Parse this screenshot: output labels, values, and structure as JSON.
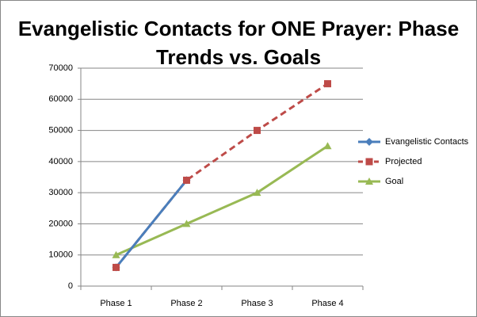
{
  "chart_data": {
    "type": "line",
    "title": "Evangelistic Contacts for ONE Prayer: Phase Trends vs. Goals",
    "categories": [
      "Phase 1",
      "Phase 2",
      "Phase 3",
      "Phase 4"
    ],
    "series": [
      {
        "name": "Evangelistic Contacts",
        "color": "#4a7ebb",
        "marker": "diamond",
        "dashed": false,
        "values": [
          6000,
          34000,
          null,
          null
        ]
      },
      {
        "name": "Projected",
        "color": "#be4b48",
        "marker": "square",
        "dashed": true,
        "values": [
          6000,
          34000,
          50000,
          65000
        ]
      },
      {
        "name": "Goal",
        "color": "#98b954",
        "marker": "triangle",
        "dashed": false,
        "values": [
          10000,
          20000,
          30000,
          45000
        ]
      }
    ],
    "ylim": [
      0,
      70000
    ],
    "yticks": [
      0,
      10000,
      20000,
      30000,
      40000,
      50000,
      60000,
      70000
    ],
    "grid": true,
    "legend": "right"
  }
}
